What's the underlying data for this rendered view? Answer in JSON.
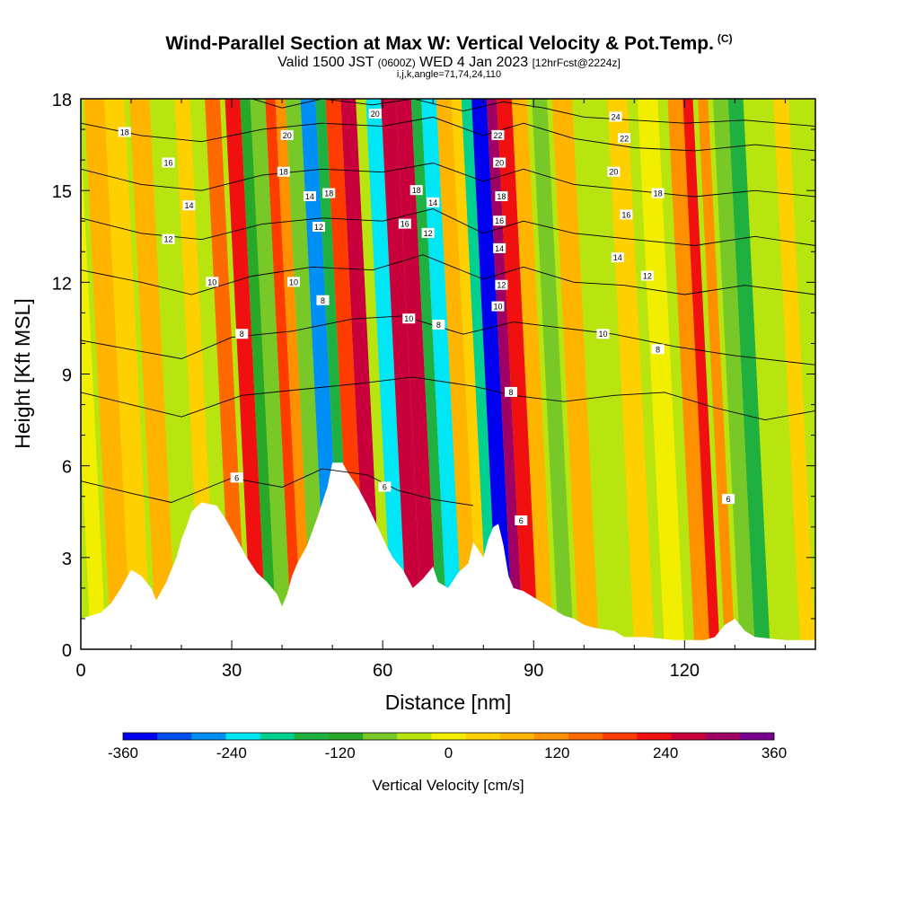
{
  "chart_data": {
    "type": "heatmap",
    "title": "Wind-Parallel Section at Max W: Vertical Velocity & Pot.Temp.",
    "title_mark": "(C)",
    "subtitle_main": "Valid 1500 JST",
    "subtitle_utc": "(0600Z)",
    "subtitle_date": "WED 4 Jan 2023",
    "subtitle_fcst": "[12hrFcst@2224z]",
    "params": "i,j,k,angle=71,74,24,110",
    "xlabel": "Distance [nm]",
    "ylabel": "Height [Kft MSL]",
    "xlim": [
      0,
      146
    ],
    "ylim": [
      0,
      18
    ],
    "x_ticks": [
      0,
      30,
      60,
      90,
      120
    ],
    "y_ticks": [
      0,
      3,
      6,
      9,
      12,
      15,
      18
    ],
    "grid": false,
    "colorbar": {
      "title": "Vertical Velocity [cm/s]",
      "range": [
        -360,
        360
      ],
      "tick_values": [
        -360,
        -240,
        -120,
        0,
        120,
        240,
        360
      ],
      "tick_labels": [
        "-360",
        "-240",
        "-120",
        "0",
        "120",
        "240",
        "360"
      ],
      "colors": [
        "#0000f0",
        "#0050f0",
        "#0090f5",
        "#00e6f5",
        "#00d090",
        "#20b040",
        "#28a828",
        "#78c828",
        "#b8e410",
        "#f2ee00",
        "#ffd000",
        "#ffb400",
        "#ff9000",
        "#ff6a00",
        "#ff3c00",
        "#f01010",
        "#c8003c",
        "#a00064",
        "#780090"
      ]
    },
    "vertical_velocity_bands": [
      {
        "x": 2,
        "w": 3,
        "value": 10
      },
      {
        "x": 6,
        "w": 4,
        "value": 60
      },
      {
        "x": 10,
        "w": 4,
        "value": 20
      },
      {
        "x": 15,
        "w": 4,
        "value": 80
      },
      {
        "x": 19,
        "w": 4,
        "value": -40
      },
      {
        "x": 24,
        "w": 3,
        "value": 30
      },
      {
        "x": 30,
        "w": 3,
        "value": 160
      },
      {
        "x": 34,
        "w": 3,
        "value": 210
      },
      {
        "x": 37,
        "w": 3,
        "value": -130
      },
      {
        "x": 39,
        "w": 3,
        "value": -70
      },
      {
        "x": 42,
        "w": 2,
        "value": 180
      },
      {
        "x": 44,
        "w": 2,
        "value": 120
      },
      {
        "x": 46,
        "w": 3,
        "value": -80
      },
      {
        "x": 49,
        "w": 3,
        "value": -280
      },
      {
        "x": 52,
        "w": 2,
        "value": -160
      },
      {
        "x": 54,
        "w": 3,
        "value": 200
      },
      {
        "x": 57,
        "w": 3,
        "value": 280
      },
      {
        "x": 60,
        "w": 2,
        "value": -40
      },
      {
        "x": 62,
        "w": 3,
        "value": -210
      },
      {
        "x": 65,
        "w": 3,
        "value": 250
      },
      {
        "x": 68,
        "w": 3,
        "value": 270
      },
      {
        "x": 71,
        "w": 2,
        "value": -150
      },
      {
        "x": 73,
        "w": 3,
        "value": -230
      },
      {
        "x": 76,
        "w": 3,
        "value": 70
      },
      {
        "x": 79,
        "w": 2,
        "value": 30
      },
      {
        "x": 81,
        "w": 2,
        "value": -200
      },
      {
        "x": 83,
        "w": 3,
        "value": -350
      },
      {
        "x": 86,
        "w": 2,
        "value": 320
      },
      {
        "x": 88,
        "w": 3,
        "value": 220
      },
      {
        "x": 91,
        "w": 3,
        "value": 60
      },
      {
        "x": 95,
        "w": 3,
        "value": -60
      },
      {
        "x": 99,
        "w": 4,
        "value": 70
      },
      {
        "x": 104,
        "w": 4,
        "value": -50
      },
      {
        "x": 110,
        "w": 4,
        "value": 30
      },
      {
        "x": 116,
        "w": 4,
        "value": 0
      },
      {
        "x": 122,
        "w": 3,
        "value": 120
      },
      {
        "x": 125,
        "w": 2,
        "value": 240
      },
      {
        "x": 128,
        "w": 2,
        "value": 100
      },
      {
        "x": 131,
        "w": 3,
        "value": -60
      },
      {
        "x": 134,
        "w": 3,
        "value": -150
      },
      {
        "x": 138,
        "w": 4,
        "value": -40
      },
      {
        "x": 143,
        "w": 3,
        "value": 20
      }
    ],
    "terrain_kft": [
      [
        0,
        1.0
      ],
      [
        4,
        1.2
      ],
      [
        6,
        1.5
      ],
      [
        8,
        2.0
      ],
      [
        10,
        2.6
      ],
      [
        12,
        2.4
      ],
      [
        14,
        2.0
      ],
      [
        15,
        1.6
      ],
      [
        17,
        2.2
      ],
      [
        19,
        3.0
      ],
      [
        20,
        3.6
      ],
      [
        21,
        4.0
      ],
      [
        22,
        4.5
      ],
      [
        24,
        4.8
      ],
      [
        27,
        4.7
      ],
      [
        29,
        4.2
      ],
      [
        31,
        3.6
      ],
      [
        33,
        3.0
      ],
      [
        35,
        2.5
      ],
      [
        37,
        2.2
      ],
      [
        39,
        1.8
      ],
      [
        40,
        1.4
      ],
      [
        41,
        1.8
      ],
      [
        42,
        2.4
      ],
      [
        43,
        2.8
      ],
      [
        45,
        3.4
      ],
      [
        47,
        4.3
      ],
      [
        49,
        5.3
      ],
      [
        50,
        6.1
      ],
      [
        52,
        6.1
      ],
      [
        53,
        5.8
      ],
      [
        55,
        5.3
      ],
      [
        57,
        4.7
      ],
      [
        59,
        4.0
      ],
      [
        61,
        3.3
      ],
      [
        62,
        3.0
      ],
      [
        64,
        2.6
      ],
      [
        65,
        2.3
      ],
      [
        66,
        2.0
      ],
      [
        68,
        2.3
      ],
      [
        70,
        2.7
      ],
      [
        71,
        2.2
      ],
      [
        73,
        2.0
      ],
      [
        75,
        2.5
      ],
      [
        77,
        2.8
      ],
      [
        78,
        3.5
      ],
      [
        80,
        3.0
      ],
      [
        81,
        3.6
      ],
      [
        82,
        4.0
      ],
      [
        83,
        4.1
      ],
      [
        84,
        3.4
      ],
      [
        85,
        2.4
      ],
      [
        86,
        2.0
      ],
      [
        88,
        1.9
      ],
      [
        90,
        1.7
      ],
      [
        92,
        1.5
      ],
      [
        94,
        1.3
      ],
      [
        96,
        1.1
      ],
      [
        98,
        1.0
      ],
      [
        100,
        0.8
      ],
      [
        102,
        0.7
      ],
      [
        106,
        0.6
      ],
      [
        108,
        0.4
      ],
      [
        112,
        0.4
      ],
      [
        118,
        0.3
      ],
      [
        124,
        0.3
      ],
      [
        126,
        0.4
      ],
      [
        128,
        0.8
      ],
      [
        130,
        1.0
      ],
      [
        132,
        0.6
      ],
      [
        134,
        0.4
      ],
      [
        140,
        0.3
      ],
      [
        146,
        0.3
      ]
    ],
    "theta_contours": [
      {
        "label": "6",
        "points": [
          [
            0,
            5.5
          ],
          [
            10,
            5.1
          ],
          [
            18,
            4.8
          ],
          [
            30,
            5.6
          ],
          [
            40,
            5.3
          ],
          [
            48,
            5.9
          ],
          [
            57,
            5.7
          ],
          [
            63,
            5.2
          ],
          [
            70,
            4.9
          ],
          [
            78,
            4.7
          ]
        ]
      },
      {
        "label": "8",
        "points": [
          [
            0,
            8.4
          ],
          [
            10,
            8.0
          ],
          [
            20,
            7.6
          ],
          [
            32,
            8.3
          ],
          [
            44,
            8.5
          ],
          [
            56,
            8.7
          ],
          [
            66,
            8.9
          ],
          [
            78,
            8.6
          ],
          [
            86,
            8.3
          ],
          [
            96,
            8.1
          ],
          [
            106,
            8.3
          ],
          [
            116,
            8.4
          ],
          [
            126,
            7.9
          ],
          [
            136,
            7.5
          ],
          [
            146,
            7.8
          ]
        ]
      },
      {
        "label": "10",
        "points": [
          [
            0,
            10.1
          ],
          [
            10,
            9.8
          ],
          [
            20,
            9.5
          ],
          [
            30,
            10.2
          ],
          [
            42,
            10.4
          ],
          [
            54,
            10.8
          ],
          [
            64,
            10.9
          ],
          [
            76,
            10.3
          ],
          [
            86,
            10.7
          ],
          [
            96,
            10.5
          ],
          [
            106,
            10.3
          ],
          [
            118,
            9.9
          ],
          [
            130,
            9.6
          ],
          [
            146,
            9.3
          ]
        ]
      },
      {
        "label": "12",
        "points": [
          [
            0,
            12.4
          ],
          [
            12,
            12.0
          ],
          [
            22,
            11.6
          ],
          [
            34,
            12.2
          ],
          [
            46,
            12.5
          ],
          [
            58,
            12.4
          ],
          [
            68,
            12.9
          ],
          [
            80,
            12.1
          ],
          [
            88,
            12.5
          ],
          [
            98,
            12.0
          ],
          [
            108,
            11.9
          ],
          [
            120,
            11.6
          ],
          [
            132,
            11.9
          ],
          [
            146,
            11.6
          ]
        ]
      },
      {
        "label": "14",
        "points": [
          [
            0,
            14.1
          ],
          [
            12,
            13.6
          ],
          [
            24,
            13.4
          ],
          [
            36,
            13.9
          ],
          [
            48,
            14.1
          ],
          [
            60,
            14.0
          ],
          [
            70,
            14.4
          ],
          [
            80,
            13.6
          ],
          [
            88,
            14.0
          ],
          [
            98,
            13.6
          ],
          [
            110,
            13.4
          ],
          [
            122,
            13.2
          ],
          [
            134,
            13.5
          ],
          [
            146,
            13.2
          ]
        ]
      },
      {
        "label": "16",
        "points": [
          [
            0,
            15.7
          ],
          [
            12,
            15.2
          ],
          [
            24,
            15.0
          ],
          [
            36,
            15.5
          ],
          [
            48,
            15.7
          ],
          [
            60,
            15.6
          ],
          [
            70,
            15.9
          ],
          [
            80,
            15.3
          ],
          [
            88,
            15.7
          ],
          [
            98,
            15.2
          ],
          [
            110,
            15.0
          ],
          [
            122,
            14.8
          ],
          [
            134,
            15.0
          ],
          [
            146,
            14.8
          ]
        ]
      },
      {
        "label": "18",
        "points": [
          [
            0,
            17.2
          ],
          [
            12,
            16.8
          ],
          [
            24,
            16.6
          ],
          [
            36,
            17.0
          ],
          [
            48,
            17.2
          ],
          [
            60,
            17.1
          ],
          [
            70,
            17.4
          ],
          [
            80,
            16.8
          ],
          [
            88,
            17.2
          ],
          [
            98,
            16.7
          ],
          [
            110,
            16.4
          ],
          [
            122,
            16.3
          ],
          [
            134,
            16.5
          ],
          [
            146,
            16.3
          ]
        ]
      },
      {
        "label": "20",
        "points": [
          [
            34,
            18.0
          ],
          [
            40,
            17.7
          ],
          [
            48,
            18.0
          ],
          [
            58,
            17.8
          ],
          [
            66,
            18.0
          ],
          [
            76,
            17.6
          ],
          [
            84,
            17.9
          ],
          [
            92,
            17.7
          ],
          [
            100,
            17.4
          ],
          [
            110,
            17.3
          ],
          [
            120,
            17.2
          ],
          [
            132,
            17.3
          ],
          [
            146,
            17.1
          ]
        ]
      }
    ],
    "contour_labels": [
      {
        "x": 8.7,
        "y": 16.9,
        "text": "18"
      },
      {
        "x": 17.4,
        "y": 15.9,
        "text": "16"
      },
      {
        "x": 21.5,
        "y": 14.5,
        "text": "14"
      },
      {
        "x": 17.4,
        "y": 13.4,
        "text": "12"
      },
      {
        "x": 26.1,
        "y": 12.0,
        "text": "10"
      },
      {
        "x": 32.0,
        "y": 10.3,
        "text": "8"
      },
      {
        "x": 31.0,
        "y": 5.6,
        "text": "6"
      },
      {
        "x": 41.0,
        "y": 16.8,
        "text": "20"
      },
      {
        "x": 40.3,
        "y": 15.6,
        "text": "18"
      },
      {
        "x": 45.5,
        "y": 14.8,
        "text": "14"
      },
      {
        "x": 49.3,
        "y": 14.9,
        "text": "18"
      },
      {
        "x": 47.3,
        "y": 13.8,
        "text": "12"
      },
      {
        "x": 42.3,
        "y": 12.0,
        "text": "10"
      },
      {
        "x": 48.1,
        "y": 11.4,
        "text": "8"
      },
      {
        "x": 58.5,
        "y": 17.5,
        "text": "20"
      },
      {
        "x": 66.7,
        "y": 15.0,
        "text": "18"
      },
      {
        "x": 70.0,
        "y": 14.6,
        "text": "14"
      },
      {
        "x": 64.4,
        "y": 13.9,
        "text": "16"
      },
      {
        "x": 69.0,
        "y": 13.6,
        "text": "12"
      },
      {
        "x": 65.2,
        "y": 10.8,
        "text": "10"
      },
      {
        "x": 71.1,
        "y": 10.6,
        "text": "8"
      },
      {
        "x": 60.4,
        "y": 5.3,
        "text": "6"
      },
      {
        "x": 82.9,
        "y": 16.8,
        "text": "22"
      },
      {
        "x": 83.2,
        "y": 15.9,
        "text": "20"
      },
      {
        "x": 83.6,
        "y": 14.8,
        "text": "18"
      },
      {
        "x": 83.2,
        "y": 14.0,
        "text": "16"
      },
      {
        "x": 83.2,
        "y": 13.1,
        "text": "14"
      },
      {
        "x": 83.6,
        "y": 11.9,
        "text": "12"
      },
      {
        "x": 82.9,
        "y": 11.2,
        "text": "10"
      },
      {
        "x": 85.5,
        "y": 8.4,
        "text": "8"
      },
      {
        "x": 87.5,
        "y": 4.2,
        "text": "6"
      },
      {
        "x": 106.3,
        "y": 17.4,
        "text": "24"
      },
      {
        "x": 108.0,
        "y": 16.7,
        "text": "22"
      },
      {
        "x": 105.9,
        "y": 15.6,
        "text": "20"
      },
      {
        "x": 114.7,
        "y": 14.9,
        "text": "18"
      },
      {
        "x": 108.4,
        "y": 14.2,
        "text": "16"
      },
      {
        "x": 106.7,
        "y": 12.8,
        "text": "14"
      },
      {
        "x": 112.6,
        "y": 12.2,
        "text": "12"
      },
      {
        "x": 103.8,
        "y": 10.3,
        "text": "10"
      },
      {
        "x": 114.7,
        "y": 9.8,
        "text": "8"
      },
      {
        "x": 128.7,
        "y": 4.9,
        "text": "6"
      }
    ]
  }
}
